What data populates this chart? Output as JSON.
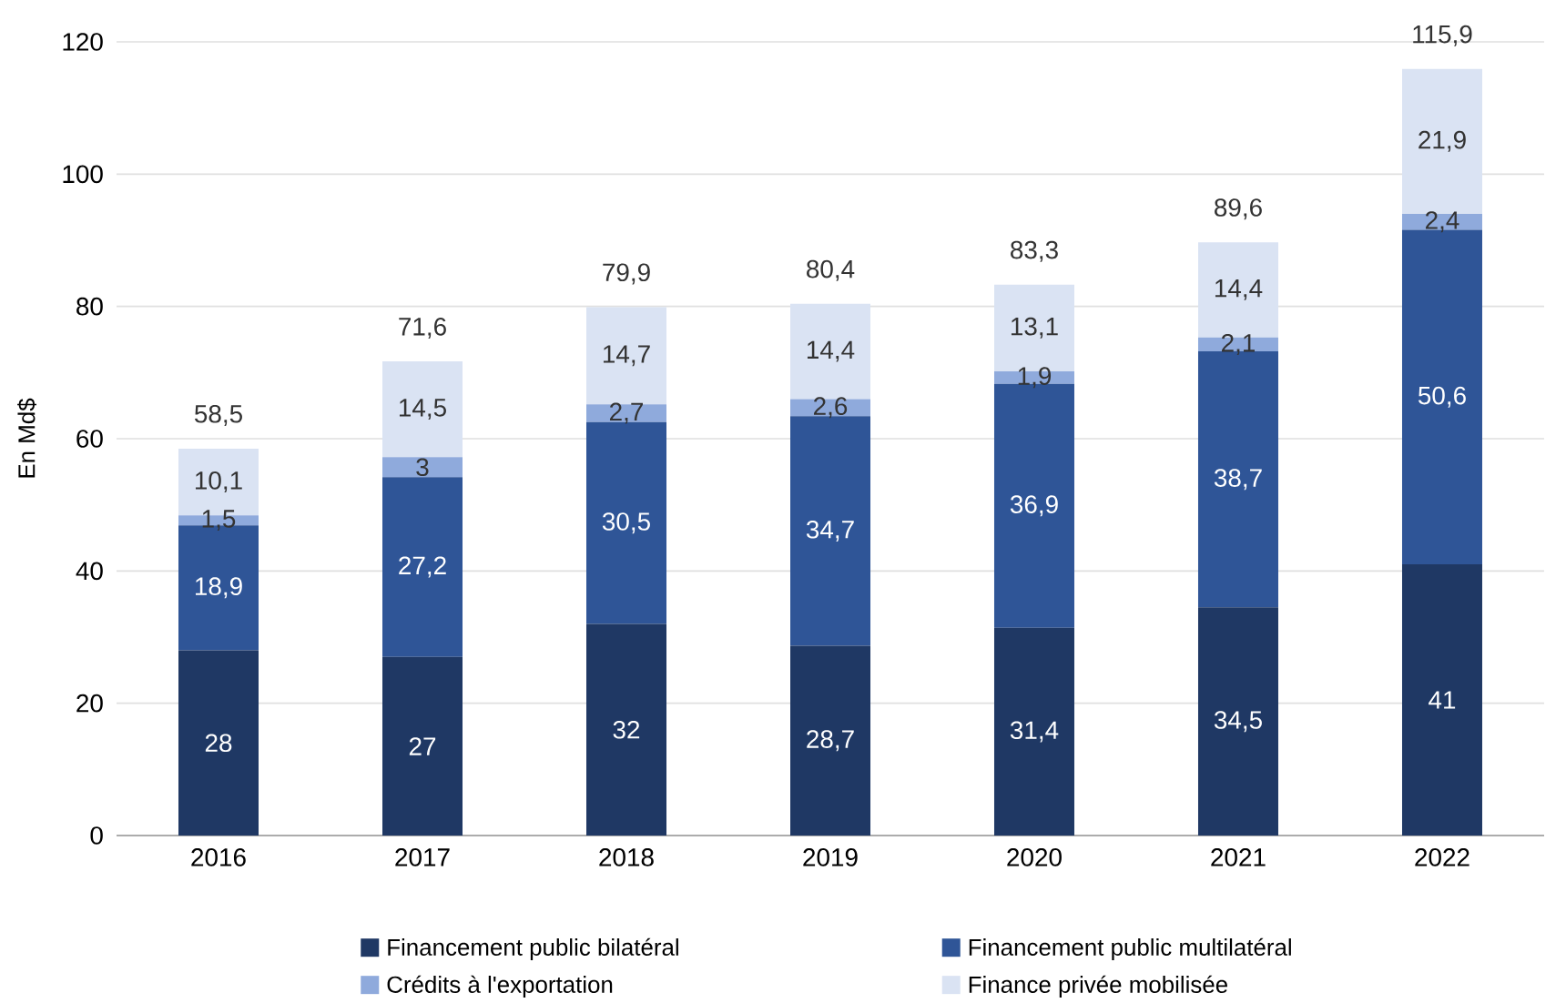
{
  "chart_data": {
    "type": "bar",
    "stacked": true,
    "ylabel": "En Md$",
    "categories": [
      "2016",
      "2017",
      "2018",
      "2019",
      "2020",
      "2021",
      "2022"
    ],
    "series": [
      {
        "name": "Financement public bilatéral",
        "color": "#1f3864",
        "values": [
          28,
          27,
          32,
          28.7,
          31.4,
          34.5,
          41
        ],
        "value_labels": [
          "28",
          "27",
          "32",
          "28,7",
          "31,4",
          "34,5",
          "41"
        ]
      },
      {
        "name": "Financement public multilatéral",
        "color": "#2f5597",
        "values": [
          18.9,
          27.2,
          30.5,
          34.7,
          36.9,
          38.7,
          50.6
        ],
        "value_labels": [
          "18,9",
          "27,2",
          "30,5",
          "34,7",
          "36,9",
          "38,7",
          "50,6"
        ]
      },
      {
        "name": "Crédits à l'exportation",
        "color": "#8faadc",
        "values": [
          1.5,
          3,
          2.7,
          2.6,
          1.9,
          2.1,
          2.4
        ],
        "value_labels": [
          "1,5",
          "3",
          "2,7",
          "2,6",
          "1,9",
          "2,1",
          "2,4"
        ]
      },
      {
        "name": "Finance privée mobilisée",
        "color": "#dae3f3",
        "values": [
          10.1,
          14.5,
          14.7,
          14.4,
          13.1,
          14.4,
          21.9
        ],
        "value_labels": [
          "10,1",
          "14,5",
          "14,7",
          "14,4",
          "13,1",
          "14,4",
          "21,9"
        ]
      }
    ],
    "totals": [
      "58,5",
      "71,6",
      "79,9",
      "80,4",
      "83,3",
      "89,6",
      "115,9"
    ],
    "ylim": [
      0,
      120
    ],
    "yticks": [
      0,
      20,
      40,
      60,
      80,
      100,
      120
    ],
    "grid": "y",
    "legend": "bottom"
  }
}
